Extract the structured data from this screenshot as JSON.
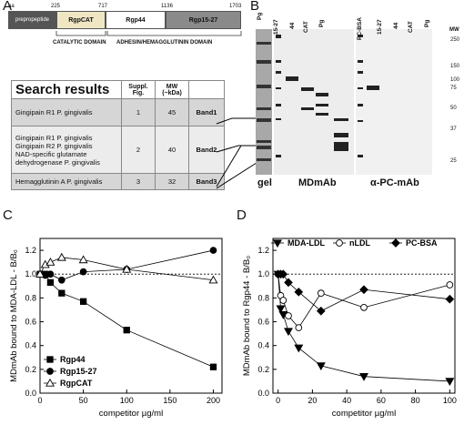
{
  "panel_letters": {
    "a": "A",
    "b": "B",
    "c": "C",
    "d": "D"
  },
  "domain_bar": {
    "aa_label": "aa",
    "positions": [
      "225",
      "717",
      "1136",
      "1703"
    ],
    "segments": [
      "prepropeptide",
      "RgpCAT",
      "Rgp44",
      "Rgp15-27"
    ],
    "colors": [
      "#555555",
      "#efe7c4",
      "#ffffff",
      "#8a8a8a"
    ],
    "bracket_labels": [
      "CATALYTIC DOMAIN",
      "ADHESIN/HEMAGGLUTININ DOMAIN"
    ]
  },
  "table": {
    "header": {
      "title": "Search results",
      "fig": "Suppl. Fig.",
      "mw": "MW (~kDa)"
    },
    "rows": [
      {
        "lines": [
          "Gingipain R1 P. gingivalis"
        ],
        "fig": "1",
        "mw": "45",
        "band": "Band1",
        "bg": "#d6d6d6"
      },
      {
        "lines": [
          "Gingipain R1 P. gingivalis",
          "Gingipain R2 P. gingivalis",
          "NAD-specific glutamate dehydrogenase P. gingivalis"
        ],
        "fig": "2",
        "mw": "40",
        "band": "Band2",
        "bg": "#ececec"
      },
      {
        "lines": [
          "Hemagglutinin A P. gingivalis"
        ],
        "fig": "3",
        "mw": "32",
        "band": "Band3",
        "bg": "#d6d6d6"
      }
    ]
  },
  "blot": {
    "lanes_left": [
      "Pg",
      "15-27",
      "44",
      "CAT",
      "Pg"
    ],
    "lanes_right": [
      "PC-BSA",
      "15-27",
      "44",
      "CAT",
      "Pg"
    ],
    "mw_label": "MW",
    "mw_markers": [
      "250",
      "150",
      "100",
      "75",
      "50",
      "37",
      "25"
    ],
    "bottom_labels": [
      "gel",
      "MDmAb",
      "α-PC-mAb"
    ]
  },
  "chart_data": [
    {
      "type": "line",
      "panel": "C",
      "ylabel": "MDmAb bound to MDA-LDL - B/B₀",
      "xlabel": "competitor µg/ml",
      "xlim": [
        0,
        210
      ],
      "ylim": [
        0,
        1.3
      ],
      "xticks": [
        0,
        50,
        100,
        150,
        200
      ],
      "yticks": [
        0.0,
        0.2,
        0.4,
        0.6,
        0.8,
        1.0,
        1.2
      ],
      "ytick_labels": [
        "0.0",
        "0.2",
        "0.4",
        "0.6",
        "0.8",
        "1.0",
        "1.2"
      ],
      "reference_line": 1.0,
      "legend_position": "bottom-left",
      "series": [
        {
          "name": "Rgp44",
          "marker": "square",
          "x": [
            0,
            6,
            12,
            25,
            50,
            100,
            200
          ],
          "y": [
            1.0,
            1.0,
            0.93,
            0.84,
            0.77,
            0.53,
            0.22
          ]
        },
        {
          "name": "Rgp15-27",
          "marker": "circle",
          "x": [
            0,
            6,
            12,
            25,
            50,
            100,
            200
          ],
          "y": [
            1.0,
            0.99,
            1.0,
            0.95,
            1.02,
            1.04,
            1.2
          ]
        },
        {
          "name": "RgpCAT",
          "marker": "triangle-up-open",
          "x": [
            0,
            6,
            12,
            25,
            50,
            100,
            200
          ],
          "y": [
            1.0,
            1.08,
            1.1,
            1.14,
            1.12,
            1.04,
            0.95
          ]
        }
      ]
    },
    {
      "type": "line",
      "panel": "D",
      "ylabel": "MDmAb bound to Rgp44 - B/B₀",
      "xlabel": "competitor µg/ml",
      "xlim": [
        -3,
        103
      ],
      "ylim": [
        0,
        1.3
      ],
      "xticks": [
        0,
        20,
        40,
        60,
        80,
        100
      ],
      "yticks": [
        0.0,
        0.2,
        0.4,
        0.6,
        0.8,
        1.0,
        1.2
      ],
      "ytick_labels": [
        "0.0",
        "0.2",
        "0.4",
        "0.6",
        "0.8",
        "1.0",
        "1.2"
      ],
      "reference_line": 1.0,
      "legend_position": "top",
      "series": [
        {
          "name": "MDA-LDL",
          "marker": "triangle-down",
          "x": [
            0,
            1.5,
            3,
            6,
            12,
            25,
            50,
            100
          ],
          "y": [
            1.0,
            0.71,
            0.66,
            0.52,
            0.38,
            0.23,
            0.14,
            0.1
          ]
        },
        {
          "name": "nLDL",
          "marker": "circle-open",
          "x": [
            0,
            1.5,
            3,
            6,
            12,
            25,
            50,
            100
          ],
          "y": [
            1.0,
            0.82,
            0.78,
            0.65,
            0.55,
            0.84,
            0.72,
            0.91
          ]
        },
        {
          "name": "PC-BSA",
          "marker": "diamond",
          "x": [
            0,
            1.5,
            3,
            6,
            12,
            25,
            50,
            100
          ],
          "y": [
            1.0,
            1.0,
            1.0,
            0.93,
            0.85,
            0.69,
            0.87,
            0.79
          ]
        }
      ]
    }
  ]
}
